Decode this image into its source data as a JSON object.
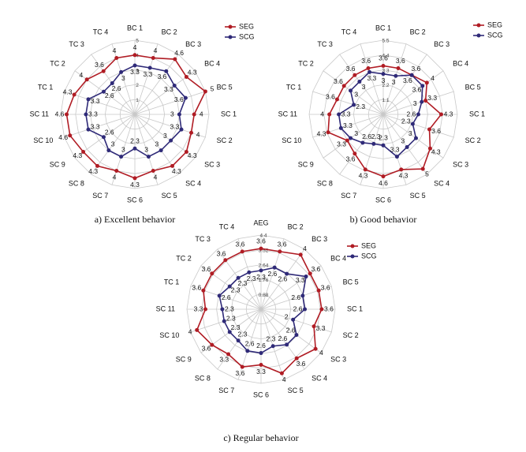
{
  "colors": {
    "seg": "#b01c24",
    "scg": "#2f2a78",
    "grid": "#c8c8c8"
  },
  "chart_data": [
    {
      "type": "radar",
      "caption": "a) Excellent behavior",
      "categories": [
        "BC 1",
        "BC 2",
        "BC 3",
        "BC 4",
        "BC 5",
        "SC 1",
        "SC 2",
        "SC 3",
        "SC 4",
        "SC 5",
        "SC 6",
        "SC 7",
        "SC 8",
        "SC 9",
        "SC 10",
        "SC 11",
        "TC 1",
        "TC 2",
        "TC 3",
        "TC 4"
      ],
      "rmax": 5,
      "ticks": [
        1,
        2,
        3,
        4,
        5
      ],
      "tick_labels": [
        "1",
        "2",
        "3",
        "4",
        "5"
      ],
      "legend": [
        "SEG",
        "SCG"
      ],
      "series": [
        {
          "name": "SEG",
          "values": [
            4,
            4,
            4.6,
            4.3,
            5,
            4,
            4,
            4.3,
            4.3,
            4,
            4.3,
            4,
            4.3,
            4.3,
            4.6,
            4.6,
            4.3,
            4,
            3.6,
            4
          ]
        },
        {
          "name": "SCG",
          "values": [
            3.3,
            3.3,
            3.6,
            3.3,
            3.6,
            3,
            3.3,
            3,
            3,
            3,
            2.3,
            3,
            3,
            2.6,
            3.3,
            3.3,
            3.3,
            2.6,
            2.6,
            3
          ]
        }
      ]
    },
    {
      "type": "radar",
      "caption": "b) Good behavior",
      "categories": [
        "BC 1",
        "BC 2",
        "BC 3",
        "BC 4",
        "BC 5",
        "SC 1",
        "SC 2",
        "SC 3",
        "SC 4",
        "SC 5",
        "SC 6",
        "SC 7",
        "SC 8",
        "SC 9",
        "SC 10",
        "SC 11",
        "TC 1",
        "TC 2",
        "TC 3",
        "TC 4"
      ],
      "rmax": 5.5,
      "ticks": [
        1.1,
        2.2,
        3.3,
        4.4,
        5.5
      ],
      "tick_labels": [
        "1.1",
        "2.2",
        "3.3",
        "4.4",
        "5.5"
      ],
      "legend": [
        "SEG",
        "SCG"
      ],
      "series": [
        {
          "name": "SEG",
          "values": [
            3.6,
            3.6,
            3.6,
            4,
            3.3,
            4.3,
            3.6,
            4.3,
            5,
            4.3,
            4.6,
            4.3,
            3.6,
            3.3,
            4.3,
            4,
            3.6,
            3.6,
            3.6,
            3.6
          ]
        },
        {
          "name": "SCG",
          "values": [
            3,
            3,
            3.6,
            3.6,
            3,
            2.6,
            2.3,
            3,
            3,
            3.3,
            2.3,
            2.3,
            2.6,
            3,
            3.3,
            3.3,
            2.3,
            3,
            3,
            3.3
          ]
        }
      ]
    },
    {
      "type": "radar",
      "caption": "c) Regular behavior",
      "categories": [
        "AEG",
        "BC 2",
        "BC 3",
        "BC 4",
        "BC 5",
        "SC 1",
        "SC 2",
        "SC 3",
        "SC 4",
        "SC 5",
        "SC 6",
        "SC 7",
        "SC 8",
        "SC 9",
        "SC 10",
        "SC 11",
        "TC 1",
        "TC 2",
        "TC 3",
        "TC 4"
      ],
      "rmax": 4.4,
      "ticks": [
        0.88,
        1.76,
        2.64,
        3.52,
        4.4
      ],
      "tick_labels": [
        "0.88",
        "1.76",
        "2.64",
        "3.52",
        "4.4"
      ],
      "legend": [
        "SEG",
        "SCG"
      ],
      "series": [
        {
          "name": "SEG",
          "values": [
            3.6,
            3.6,
            4,
            3.6,
            3.6,
            3.6,
            3.3,
            4,
            3.6,
            4,
            3.3,
            3.6,
            3.3,
            3.6,
            4,
            3.3,
            3.6,
            3.6,
            3.6,
            3.6
          ]
        },
        {
          "name": "SCG",
          "values": [
            2.3,
            2.6,
            2.6,
            3.3,
            2.6,
            2.6,
            2,
            2.6,
            2.6,
            2.3,
            2.6,
            2.6,
            2.3,
            2.3,
            2.3,
            2.3,
            2.6,
            2.3,
            2.3,
            2.3
          ]
        }
      ]
    }
  ]
}
